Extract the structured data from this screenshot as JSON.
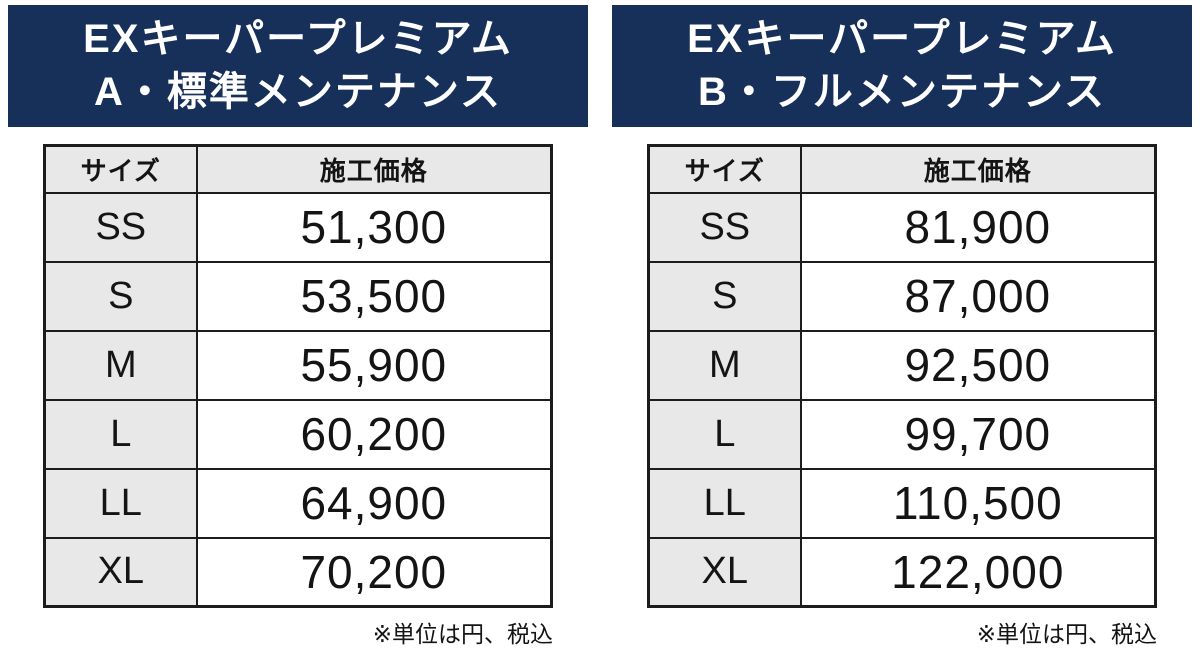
{
  "colors": {
    "banner_background": "#16305a",
    "banner_text": "#ffffff",
    "table_header_background": "#e8e8e8",
    "size_column_background": "#e8e8e8",
    "table_border": "#1c1c1c",
    "page_background": "#ffffff",
    "text": "#141414"
  },
  "panels": [
    {
      "title_line1": "EXキーパープレミアム",
      "title_line2": "A・標準メンテナンス",
      "columns": [
        "サイズ",
        "施工価格"
      ],
      "rows": [
        {
          "size": "SS",
          "price": "51,300"
        },
        {
          "size": "S",
          "price": "53,500"
        },
        {
          "size": "M",
          "price": "55,900"
        },
        {
          "size": "L",
          "price": "60,200"
        },
        {
          "size": "LL",
          "price": "64,900"
        },
        {
          "size": "XL",
          "price": "70,200"
        }
      ],
      "note": "※単位は円、税込"
    },
    {
      "title_line1": "EXキーパープレミアム",
      "title_line2": "B・フルメンテナンス",
      "columns": [
        "サイズ",
        "施工価格"
      ],
      "rows": [
        {
          "size": "SS",
          "price": "81,900"
        },
        {
          "size": "S",
          "price": "87,000"
        },
        {
          "size": "M",
          "price": "92,500"
        },
        {
          "size": "L",
          "price": "99,700"
        },
        {
          "size": "LL",
          "price": "110,500"
        },
        {
          "size": "XL",
          "price": "122,000"
        }
      ],
      "note": "※単位は円、税込"
    }
  ],
  "chart_data": [
    {
      "type": "table",
      "title": "EXキーパープレミアム A・標準メンテナンス",
      "columns": [
        "サイズ",
        "施工価格"
      ],
      "rows": [
        [
          "SS",
          51300
        ],
        [
          "S",
          53500
        ],
        [
          "M",
          55900
        ],
        [
          "L",
          60200
        ],
        [
          "LL",
          64900
        ],
        [
          "XL",
          70200
        ]
      ],
      "unit_note": "※単位は円、税込"
    },
    {
      "type": "table",
      "title": "EXキーパープレミアム B・フルメンテナンス",
      "columns": [
        "サイズ",
        "施工価格"
      ],
      "rows": [
        [
          "SS",
          81900
        ],
        [
          "S",
          87000
        ],
        [
          "M",
          92500
        ],
        [
          "L",
          99700
        ],
        [
          "LL",
          110500
        ],
        [
          "XL",
          122000
        ]
      ],
      "unit_note": "※単位は円、税込"
    }
  ]
}
